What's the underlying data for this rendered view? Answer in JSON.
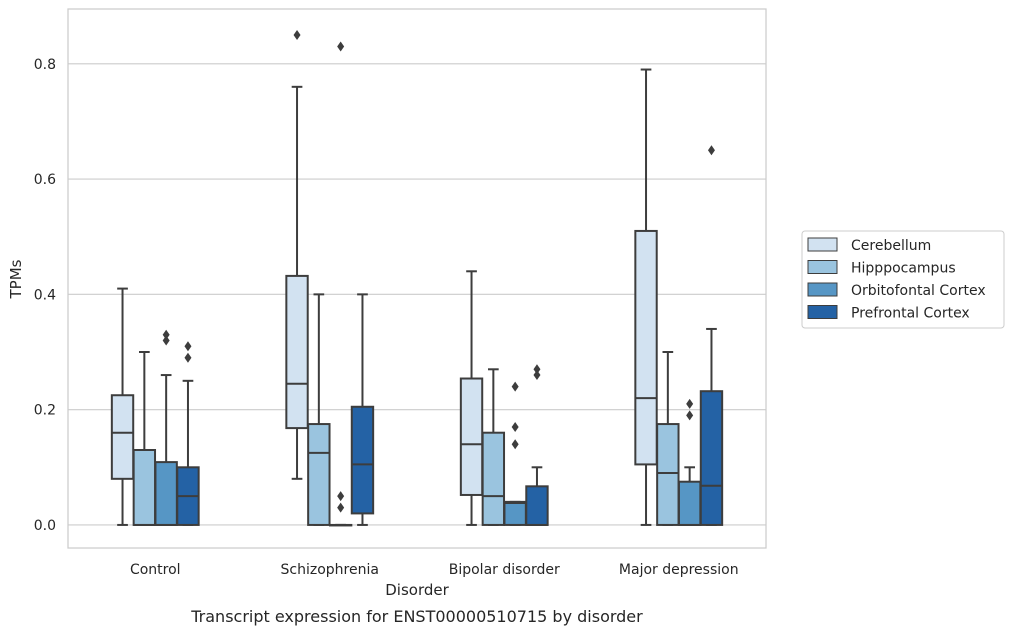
{
  "chart_data": {
    "type": "box",
    "caption": "Transcript expression for ENST00000510715 by disorder",
    "xlabel": "Disorder",
    "ylabel": "TPMs",
    "ylim": [
      -0.04,
      0.895
    ],
    "yticks": [
      0.0,
      0.2,
      0.4,
      0.6,
      0.8
    ],
    "ytick_labels": [
      "0.0",
      "0.2",
      "0.4",
      "0.6",
      "0.8"
    ],
    "grid": "horizontal",
    "legend_position": "right",
    "categories": [
      "Control",
      "Schizophrenia",
      "Bipolar disorder",
      "Major depression"
    ],
    "series": [
      {
        "name": "Cerebellum",
        "color": "#d2e2f1",
        "boxes": [
          {
            "whislo": 0.0,
            "q1": 0.08,
            "med": 0.16,
            "q3": 0.225,
            "whishi": 0.41,
            "fliers": []
          },
          {
            "whislo": 0.08,
            "q1": 0.168,
            "med": 0.245,
            "q3": 0.432,
            "whishi": 0.76,
            "fliers": [
              0.85
            ]
          },
          {
            "whislo": 0.0,
            "q1": 0.052,
            "med": 0.14,
            "q3": 0.254,
            "whishi": 0.44,
            "fliers": []
          },
          {
            "whislo": 0.0,
            "q1": 0.105,
            "med": 0.22,
            "q3": 0.51,
            "whishi": 0.79,
            "fliers": []
          }
        ]
      },
      {
        "name": "Hipppocampus",
        "color": "#9ac4df",
        "boxes": [
          {
            "whislo": 0.0,
            "q1": 0.0,
            "med": 0.0,
            "q3": 0.13,
            "whishi": 0.3,
            "fliers": []
          },
          {
            "whislo": 0.0,
            "q1": 0.0,
            "med": 0.125,
            "q3": 0.175,
            "whishi": 0.4,
            "fliers": []
          },
          {
            "whislo": 0.0,
            "q1": 0.0,
            "med": 0.05,
            "q3": 0.16,
            "whishi": 0.27,
            "fliers": []
          },
          {
            "whislo": 0.0,
            "q1": 0.0,
            "med": 0.09,
            "q3": 0.175,
            "whishi": 0.3,
            "fliers": []
          }
        ]
      },
      {
        "name": "Orbitofontal Cortex",
        "color": "#5696c5",
        "boxes": [
          {
            "whislo": 0.0,
            "q1": 0.0,
            "med": 0.0,
            "q3": 0.109,
            "whishi": 0.26,
            "fliers": [
              0.32,
              0.33
            ]
          },
          {
            "whislo": 0.0,
            "q1": 0.0,
            "med": 0.0,
            "q3": 0.0,
            "whishi": 0.0,
            "fliers": [
              0.03,
              0.05,
              0.83
            ]
          },
          {
            "whislo": 0.0,
            "q1": 0.0,
            "med": 0.038,
            "q3": 0.04,
            "whishi": 0.04,
            "fliers": [
              0.14,
              0.17,
              0.24
            ]
          },
          {
            "whislo": 0.0,
            "q1": 0.0,
            "med": 0.0,
            "q3": 0.075,
            "whishi": 0.1,
            "fliers": [
              0.19,
              0.21
            ]
          }
        ]
      },
      {
        "name": "Prefrontal Cortex",
        "color": "#2462a5",
        "boxes": [
          {
            "whislo": 0.0,
            "q1": 0.0,
            "med": 0.05,
            "q3": 0.1,
            "whishi": 0.25,
            "fliers": [
              0.29,
              0.31
            ]
          },
          {
            "whislo": 0.0,
            "q1": 0.02,
            "med": 0.105,
            "q3": 0.205,
            "whishi": 0.4,
            "fliers": []
          },
          {
            "whislo": 0.0,
            "q1": 0.0,
            "med": 0.0,
            "q3": 0.067,
            "whishi": 0.1,
            "fliers": [
              0.26,
              0.27
            ]
          },
          {
            "whislo": 0.0,
            "q1": 0.0,
            "med": 0.068,
            "q3": 0.232,
            "whishi": 0.34,
            "fliers": [
              0.65
            ]
          }
        ]
      }
    ]
  }
}
